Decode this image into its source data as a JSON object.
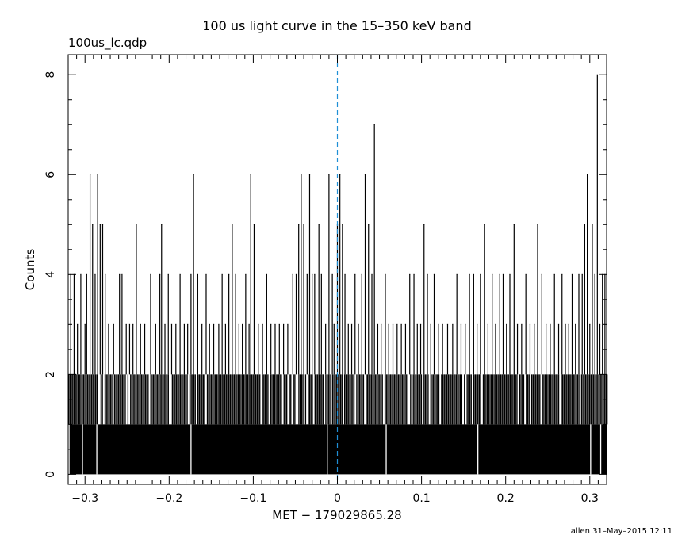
{
  "chart_data": {
    "type": "histogram-step",
    "title": "100 us light curve in the 15–350 keV band",
    "subtitle": "100us_lc.qdp",
    "xlabel": "MET − 179029865.28",
    "ylabel": "Counts",
    "xlim": [
      -0.32,
      0.32
    ],
    "ylim": [
      -0.2,
      8.4
    ],
    "x_ticks": [
      -0.3,
      -0.2,
      -0.1,
      0,
      0.1,
      0.2,
      0.3
    ],
    "x_tick_labels": [
      "−0.3",
      "−0.2",
      "−0.1",
      "0",
      "0.1",
      "0.2",
      "0.3"
    ],
    "y_ticks": [
      0,
      2,
      4,
      6,
      8
    ],
    "y_tick_labels": [
      "0",
      "2",
      "4",
      "6",
      "8"
    ],
    "bin_width": 0.0001,
    "reference_line": {
      "x": 0,
      "color": "#1f8fd6",
      "style": "dashed"
    },
    "series": [
      {
        "baseline_counts": [
          0,
          1,
          2
        ],
        "peaks": [
          {
            "x": -0.317,
            "y": 4
          },
          {
            "x": -0.313,
            "y": 4
          },
          {
            "x": -0.309,
            "y": 3
          },
          {
            "x": -0.305,
            "y": 4
          },
          {
            "x": -0.3,
            "y": 3
          },
          {
            "x": -0.298,
            "y": 4
          },
          {
            "x": -0.294,
            "y": 6
          },
          {
            "x": -0.291,
            "y": 5
          },
          {
            "x": -0.288,
            "y": 4
          },
          {
            "x": -0.285,
            "y": 6
          },
          {
            "x": -0.282,
            "y": 5
          },
          {
            "x": -0.279,
            "y": 5
          },
          {
            "x": -0.276,
            "y": 4
          },
          {
            "x": -0.272,
            "y": 3
          },
          {
            "x": -0.266,
            "y": 3
          },
          {
            "x": -0.259,
            "y": 4
          },
          {
            "x": -0.256,
            "y": 4
          },
          {
            "x": -0.251,
            "y": 3
          },
          {
            "x": -0.247,
            "y": 3
          },
          {
            "x": -0.243,
            "y": 3
          },
          {
            "x": -0.239,
            "y": 5
          },
          {
            "x": -0.234,
            "y": 3
          },
          {
            "x": -0.229,
            "y": 3
          },
          {
            "x": -0.222,
            "y": 4
          },
          {
            "x": -0.216,
            "y": 3
          },
          {
            "x": -0.211,
            "y": 4
          },
          {
            "x": -0.209,
            "y": 5
          },
          {
            "x": -0.205,
            "y": 3
          },
          {
            "x": -0.201,
            "y": 4
          },
          {
            "x": -0.197,
            "y": 3
          },
          {
            "x": -0.192,
            "y": 3
          },
          {
            "x": -0.187,
            "y": 4
          },
          {
            "x": -0.182,
            "y": 3
          },
          {
            "x": -0.178,
            "y": 3
          },
          {
            "x": -0.174,
            "y": 4
          },
          {
            "x": -0.171,
            "y": 6
          },
          {
            "x": -0.166,
            "y": 4
          },
          {
            "x": -0.161,
            "y": 3
          },
          {
            "x": -0.156,
            "y": 4
          },
          {
            "x": -0.152,
            "y": 3
          },
          {
            "x": -0.147,
            "y": 3
          },
          {
            "x": -0.141,
            "y": 3
          },
          {
            "x": -0.137,
            "y": 4
          },
          {
            "x": -0.133,
            "y": 3
          },
          {
            "x": -0.129,
            "y": 4
          },
          {
            "x": -0.125,
            "y": 5
          },
          {
            "x": -0.121,
            "y": 4
          },
          {
            "x": -0.117,
            "y": 3
          },
          {
            "x": -0.113,
            "y": 3
          },
          {
            "x": -0.109,
            "y": 4
          },
          {
            "x": -0.105,
            "y": 3
          },
          {
            "x": -0.103,
            "y": 6
          },
          {
            "x": -0.099,
            "y": 5
          },
          {
            "x": -0.094,
            "y": 3
          },
          {
            "x": -0.089,
            "y": 3
          },
          {
            "x": -0.084,
            "y": 4
          },
          {
            "x": -0.079,
            "y": 3
          },
          {
            "x": -0.074,
            "y": 3
          },
          {
            "x": -0.069,
            "y": 3
          },
          {
            "x": -0.064,
            "y": 3
          },
          {
            "x": -0.059,
            "y": 3
          },
          {
            "x": -0.053,
            "y": 4
          },
          {
            "x": -0.049,
            "y": 4
          },
          {
            "x": -0.046,
            "y": 5
          },
          {
            "x": -0.043,
            "y": 6
          },
          {
            "x": -0.04,
            "y": 5
          },
          {
            "x": -0.036,
            "y": 4
          },
          {
            "x": -0.033,
            "y": 6
          },
          {
            "x": -0.03,
            "y": 4
          },
          {
            "x": -0.027,
            "y": 4
          },
          {
            "x": -0.022,
            "y": 5
          },
          {
            "x": -0.019,
            "y": 4
          },
          {
            "x": -0.014,
            "y": 3
          },
          {
            "x": -0.01,
            "y": 6
          },
          {
            "x": -0.006,
            "y": 4
          },
          {
            "x": -0.004,
            "y": 3
          },
          {
            "x": 0.0,
            "y": 5
          },
          {
            "x": 0.003,
            "y": 6
          },
          {
            "x": 0.006,
            "y": 5
          },
          {
            "x": 0.009,
            "y": 4
          },
          {
            "x": 0.013,
            "y": 3
          },
          {
            "x": 0.017,
            "y": 3
          },
          {
            "x": 0.021,
            "y": 4
          },
          {
            "x": 0.025,
            "y": 3
          },
          {
            "x": 0.029,
            "y": 4
          },
          {
            "x": 0.033,
            "y": 6
          },
          {
            "x": 0.037,
            "y": 5
          },
          {
            "x": 0.041,
            "y": 4
          },
          {
            "x": 0.044,
            "y": 7
          },
          {
            "x": 0.048,
            "y": 3
          },
          {
            "x": 0.052,
            "y": 3
          },
          {
            "x": 0.057,
            "y": 4
          },
          {
            "x": 0.061,
            "y": 3
          },
          {
            "x": 0.066,
            "y": 3
          },
          {
            "x": 0.071,
            "y": 3
          },
          {
            "x": 0.076,
            "y": 3
          },
          {
            "x": 0.081,
            "y": 3
          },
          {
            "x": 0.086,
            "y": 4
          },
          {
            "x": 0.091,
            "y": 4
          },
          {
            "x": 0.095,
            "y": 3
          },
          {
            "x": 0.099,
            "y": 3
          },
          {
            "x": 0.103,
            "y": 5
          },
          {
            "x": 0.107,
            "y": 4
          },
          {
            "x": 0.111,
            "y": 3
          },
          {
            "x": 0.115,
            "y": 4
          },
          {
            "x": 0.12,
            "y": 3
          },
          {
            "x": 0.125,
            "y": 3
          },
          {
            "x": 0.131,
            "y": 3
          },
          {
            "x": 0.137,
            "y": 3
          },
          {
            "x": 0.142,
            "y": 4
          },
          {
            "x": 0.147,
            "y": 3
          },
          {
            "x": 0.152,
            "y": 3
          },
          {
            "x": 0.157,
            "y": 4
          },
          {
            "x": 0.162,
            "y": 4
          },
          {
            "x": 0.166,
            "y": 3
          },
          {
            "x": 0.17,
            "y": 4
          },
          {
            "x": 0.175,
            "y": 5
          },
          {
            "x": 0.179,
            "y": 3
          },
          {
            "x": 0.184,
            "y": 4
          },
          {
            "x": 0.188,
            "y": 3
          },
          {
            "x": 0.193,
            "y": 4
          },
          {
            "x": 0.197,
            "y": 4
          },
          {
            "x": 0.201,
            "y": 3
          },
          {
            "x": 0.205,
            "y": 4
          },
          {
            "x": 0.21,
            "y": 5
          },
          {
            "x": 0.214,
            "y": 3
          },
          {
            "x": 0.219,
            "y": 3
          },
          {
            "x": 0.224,
            "y": 4
          },
          {
            "x": 0.229,
            "y": 3
          },
          {
            "x": 0.234,
            "y": 3
          },
          {
            "x": 0.238,
            "y": 5
          },
          {
            "x": 0.243,
            "y": 4
          },
          {
            "x": 0.248,
            "y": 3
          },
          {
            "x": 0.253,
            "y": 3
          },
          {
            "x": 0.258,
            "y": 4
          },
          {
            "x": 0.263,
            "y": 3
          },
          {
            "x": 0.267,
            "y": 4
          },
          {
            "x": 0.271,
            "y": 3
          },
          {
            "x": 0.275,
            "y": 3
          },
          {
            "x": 0.279,
            "y": 4
          },
          {
            "x": 0.283,
            "y": 3
          },
          {
            "x": 0.287,
            "y": 4
          },
          {
            "x": 0.291,
            "y": 4
          },
          {
            "x": 0.294,
            "y": 5
          },
          {
            "x": 0.297,
            "y": 6
          },
          {
            "x": 0.3,
            "y": 3
          },
          {
            "x": 0.303,
            "y": 5
          },
          {
            "x": 0.306,
            "y": 4
          },
          {
            "x": 0.309,
            "y": 8
          },
          {
            "x": 0.312,
            "y": 3
          },
          {
            "x": 0.315,
            "y": 4
          },
          {
            "x": 0.318,
            "y": 4
          }
        ],
        "zero_gaps": [
          -0.319,
          -0.303,
          -0.286,
          -0.174,
          -0.012,
          0.058,
          0.167,
          0.301,
          0.313
        ]
      }
    ],
    "footer": "allen 31–May–2015 12:11",
    "grid": false,
    "legend": "none"
  }
}
